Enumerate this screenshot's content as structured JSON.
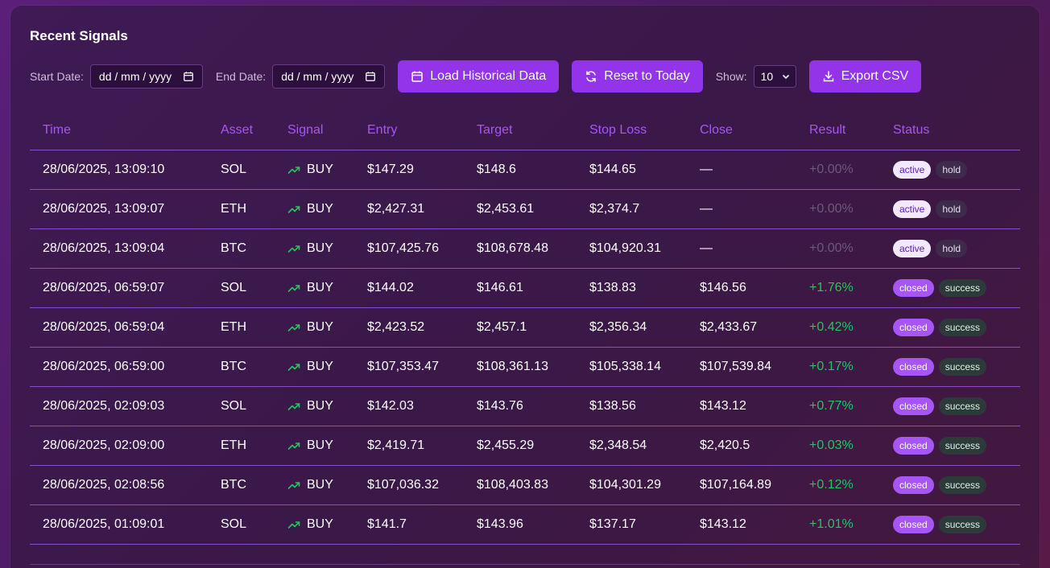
{
  "panel": {
    "title": "Recent Signals"
  },
  "filters": {
    "start_label": "Start Date:",
    "start_value": "dd / mm / yyyy",
    "end_label": "End Date:",
    "end_value": "dd / mm / yyyy",
    "load_label": "Load Historical Data",
    "reset_label": "Reset to Today",
    "show_label": "Show:",
    "show_value": "10",
    "export_label": "Export CSV"
  },
  "table": {
    "headers": [
      "Time",
      "Asset",
      "Signal",
      "Entry",
      "Target",
      "Stop Loss",
      "Close",
      "Result",
      "Status"
    ],
    "rows": [
      {
        "time": "28/06/2025, 13:09:10",
        "asset": "SOL",
        "signal": "BUY",
        "entry": "$147.29",
        "target": "$148.6",
        "stop": "$144.65",
        "close": "—",
        "result": "+0.00%",
        "status": "active",
        "outcome": "hold"
      },
      {
        "time": "28/06/2025, 13:09:07",
        "asset": "ETH",
        "signal": "BUY",
        "entry": "$2,427.31",
        "target": "$2,453.61",
        "stop": "$2,374.7",
        "close": "—",
        "result": "+0.00%",
        "status": "active",
        "outcome": "hold"
      },
      {
        "time": "28/06/2025, 13:09:04",
        "asset": "BTC",
        "signal": "BUY",
        "entry": "$107,425.76",
        "target": "$108,678.48",
        "stop": "$104,920.31",
        "close": "—",
        "result": "+0.00%",
        "status": "active",
        "outcome": "hold"
      },
      {
        "time": "28/06/2025, 06:59:07",
        "asset": "SOL",
        "signal": "BUY",
        "entry": "$144.02",
        "target": "$146.61",
        "stop": "$138.83",
        "close": "$146.56",
        "result": "+1.76%",
        "status": "closed",
        "outcome": "success"
      },
      {
        "time": "28/06/2025, 06:59:04",
        "asset": "ETH",
        "signal": "BUY",
        "entry": "$2,423.52",
        "target": "$2,457.1",
        "stop": "$2,356.34",
        "close": "$2,433.67",
        "result": "+0.42%",
        "status": "closed",
        "outcome": "success"
      },
      {
        "time": "28/06/2025, 06:59:00",
        "asset": "BTC",
        "signal": "BUY",
        "entry": "$107,353.47",
        "target": "$108,361.13",
        "stop": "$105,338.14",
        "close": "$107,539.84",
        "result": "+0.17%",
        "status": "closed",
        "outcome": "success"
      },
      {
        "time": "28/06/2025, 02:09:03",
        "asset": "SOL",
        "signal": "BUY",
        "entry": "$142.03",
        "target": "$143.76",
        "stop": "$138.56",
        "close": "$143.12",
        "result": "+0.77%",
        "status": "closed",
        "outcome": "success"
      },
      {
        "time": "28/06/2025, 02:09:00",
        "asset": "ETH",
        "signal": "BUY",
        "entry": "$2,419.71",
        "target": "$2,455.29",
        "stop": "$2,348.54",
        "close": "$2,420.5",
        "result": "+0.03%",
        "status": "closed",
        "outcome": "success"
      },
      {
        "time": "28/06/2025, 02:08:56",
        "asset": "BTC",
        "signal": "BUY",
        "entry": "$107,036.32",
        "target": "$108,403.83",
        "stop": "$104,301.29",
        "close": "$107,164.89",
        "result": "+0.12%",
        "status": "closed",
        "outcome": "success"
      },
      {
        "time": "28/06/2025, 01:09:01",
        "asset": "SOL",
        "signal": "BUY",
        "entry": "$141.7",
        "target": "$143.96",
        "stop": "$137.17",
        "close": "$143.12",
        "result": "+1.01%",
        "status": "closed",
        "outcome": "success"
      }
    ]
  },
  "colors": {
    "accent": "#9333ea",
    "header_text": "#a855f7",
    "positive": "#22c55e",
    "neutral": "#6b5a78"
  },
  "icons": {
    "signal": "trending-up-icon",
    "load": "calendar-icon",
    "reset": "refresh-icon",
    "export": "download-icon"
  }
}
